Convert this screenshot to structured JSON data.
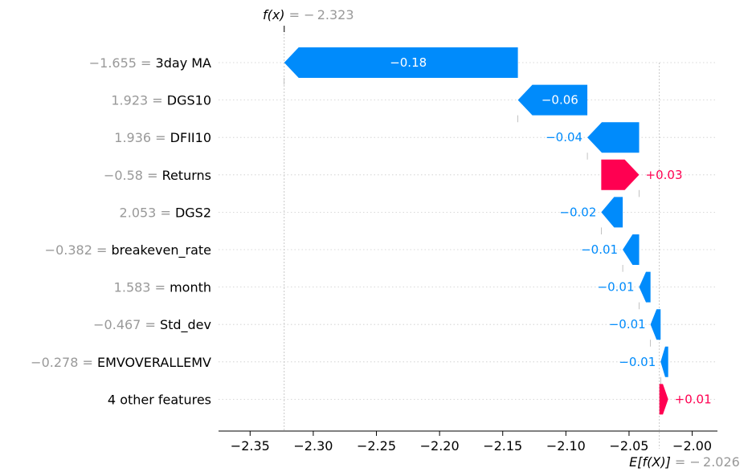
{
  "chart_data": {
    "type": "waterfall",
    "title": "",
    "xlabel": "",
    "ylabel": "",
    "xlim": [
      -2.375,
      -1.98
    ],
    "fx_label": "f(x)",
    "fx_value_label": " = − 2.323",
    "fx": -2.323,
    "base_label": "E[f(X)]",
    "base_value_label": " = − 2.026",
    "base": -2.026,
    "x_ticks": [
      {
        "value": -2.35,
        "label": "−2.35"
      },
      {
        "value": -2.3,
        "label": "−2.30"
      },
      {
        "value": -2.25,
        "label": "−2.25"
      },
      {
        "value": -2.2,
        "label": "−2.20"
      },
      {
        "value": -2.15,
        "label": "−2.15"
      },
      {
        "value": -2.1,
        "label": "−2.10"
      },
      {
        "value": -2.05,
        "label": "−2.05"
      },
      {
        "value": -2.0,
        "label": "−2.00"
      }
    ],
    "colors": {
      "negative": "#008bfb",
      "positive": "#ff0051",
      "label_gray": "#999999"
    },
    "features": [
      {
        "value_label": "−1.655",
        "name": "3day MA",
        "start": -2.138,
        "end": -2.323,
        "shap_label": "−0.18"
      },
      {
        "value_label": "1.923",
        "name": "DGS10",
        "start": -2.083,
        "end": -2.138,
        "shap_label": "−0.06"
      },
      {
        "value_label": "1.936",
        "name": "DFII10",
        "start": -2.042,
        "end": -2.083,
        "shap_label": "−0.04"
      },
      {
        "value_label": "−0.58",
        "name": "Returns",
        "start": -2.072,
        "end": -2.042,
        "shap_label": "+0.03"
      },
      {
        "value_label": "2.053",
        "name": "DGS2",
        "start": -2.055,
        "end": -2.072,
        "shap_label": "−0.02"
      },
      {
        "value_label": "−0.382",
        "name": "breakeven_rate",
        "start": -2.042,
        "end": -2.055,
        "shap_label": "−0.01"
      },
      {
        "value_label": "1.583",
        "name": "month",
        "start": -2.033,
        "end": -2.042,
        "shap_label": "−0.01"
      },
      {
        "value_label": "−0.467",
        "name": "Std_dev",
        "start": -2.025,
        "end": -2.033,
        "shap_label": "−0.01"
      },
      {
        "value_label": "−0.278",
        "name": "EMVOVERALLEMV",
        "start": -2.019,
        "end": -2.025,
        "shap_label": "−0.01"
      },
      {
        "value_label": "",
        "name": "4 other features",
        "start": -2.026,
        "end": -2.019,
        "shap_label": "+0.01"
      }
    ]
  }
}
